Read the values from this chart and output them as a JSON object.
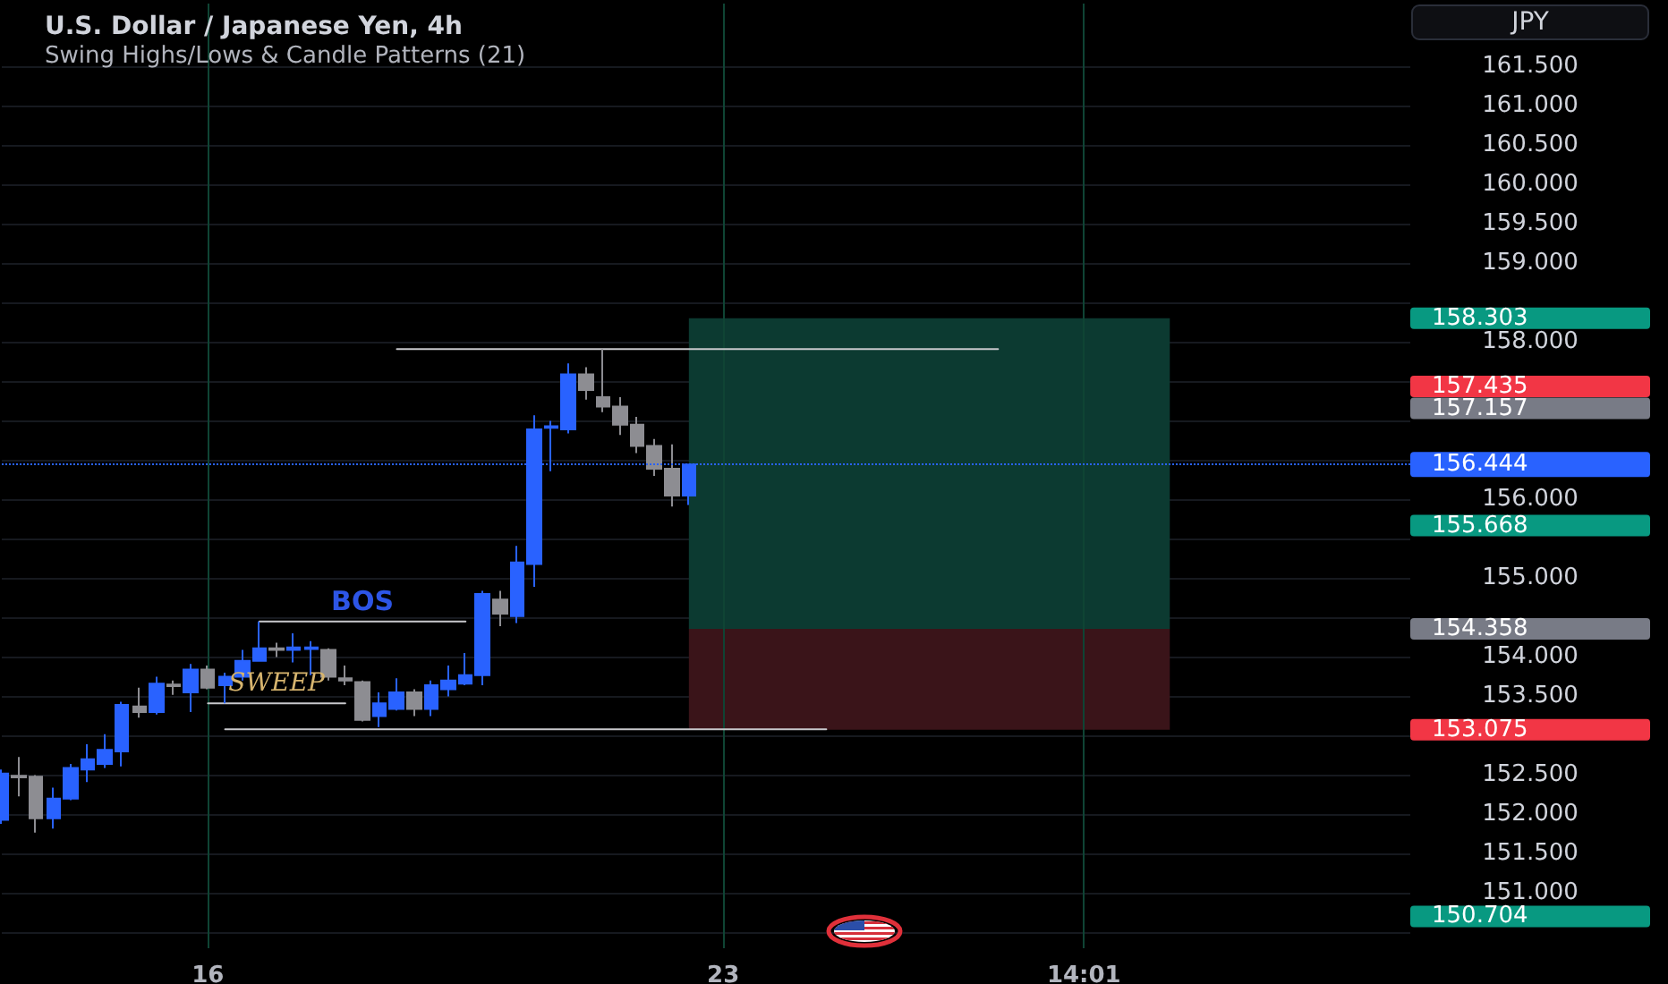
{
  "chart_data": {
    "type": "candlestick",
    "title": "U.S. Dollar / Japanese Yen, 4h",
    "subtitle": "Swing Highs/Lows & Candle Patterns (21)",
    "ylabel": "JPY",
    "categories": [
      null,
      null,
      null,
      null,
      null,
      null,
      null,
      null,
      null,
      null,
      null,
      null,
      "16",
      null,
      null,
      null,
      null,
      null,
      null,
      null,
      null,
      null,
      null,
      null,
      null,
      null,
      null,
      null,
      null,
      null,
      null,
      null,
      null,
      null,
      null,
      null,
      null,
      null,
      null,
      null,
      null,
      null,
      "23",
      null,
      null,
      null,
      null,
      null,
      null,
      null,
      null,
      null,
      null,
      null,
      null,
      null,
      null,
      null,
      null,
      null,
      null,
      null,
      null,
      "14:01",
      null,
      null,
      null,
      null,
      null,
      null,
      null,
      null,
      null,
      null,
      null,
      null,
      null,
      null,
      null,
      null,
      null,
      null,
      null
    ],
    "ohlc": [
      [
        151.93,
        152.57,
        151.88,
        152.52
      ],
      [
        152.49,
        152.73,
        152.23,
        152.47
      ],
      [
        152.48,
        152.5,
        151.77,
        151.95
      ],
      [
        151.95,
        152.34,
        151.82,
        152.2
      ],
      [
        152.2,
        152.64,
        152.18,
        152.59
      ],
      [
        152.57,
        152.89,
        152.41,
        152.7
      ],
      [
        152.64,
        153.02,
        152.59,
        152.82
      ],
      [
        152.8,
        153.43,
        152.61,
        153.39
      ],
      [
        153.37,
        153.61,
        153.23,
        153.3
      ],
      [
        153.3,
        153.75,
        153.27,
        153.66
      ],
      [
        153.65,
        153.7,
        153.52,
        153.63
      ],
      [
        153.55,
        153.91,
        153.3,
        153.84
      ],
      [
        153.84,
        153.89,
        153.59,
        153.61
      ],
      [
        153.64,
        153.8,
        153.41,
        153.75
      ],
      [
        153.75,
        154.09,
        153.7,
        153.95
      ],
      [
        153.95,
        154.45,
        153.94,
        154.11
      ],
      [
        154.11,
        154.18,
        154.0,
        154.09
      ],
      [
        154.09,
        154.3,
        153.93,
        154.12
      ],
      [
        154.1,
        154.2,
        153.77,
        154.12
      ],
      [
        154.09,
        154.11,
        153.7,
        153.75
      ],
      [
        153.73,
        153.89,
        153.64,
        153.7
      ],
      [
        153.68,
        153.7,
        153.18,
        153.2
      ],
      [
        153.25,
        153.55,
        153.11,
        153.41
      ],
      [
        153.34,
        153.73,
        153.32,
        153.55
      ],
      [
        153.55,
        153.59,
        153.25,
        153.34
      ],
      [
        153.34,
        153.7,
        153.25,
        153.64
      ],
      [
        153.59,
        153.89,
        153.5,
        153.7
      ],
      [
        153.66,
        154.05,
        153.64,
        153.77
      ],
      [
        153.77,
        154.84,
        153.64,
        154.8
      ],
      [
        154.73,
        154.84,
        154.39,
        154.55
      ],
      [
        154.52,
        155.41,
        154.43,
        155.2
      ],
      [
        155.18,
        157.07,
        154.89,
        156.89
      ],
      [
        156.91,
        157.0,
        156.36,
        156.93
      ],
      [
        156.89,
        157.73,
        156.84,
        157.59
      ],
      [
        157.59,
        157.68,
        157.27,
        157.39
      ],
      [
        157.3,
        157.91,
        157.11,
        157.18
      ],
      [
        157.18,
        157.3,
        156.82,
        156.95
      ],
      [
        156.95,
        157.05,
        156.59,
        156.68
      ],
      [
        156.68,
        156.77,
        156.3,
        156.39
      ],
      [
        156.39,
        156.7,
        155.91,
        156.05
      ],
      [
        156.05,
        156.45,
        155.93,
        156.444
      ],
      null,
      null,
      null,
      null,
      null,
      null,
      null,
      null,
      null,
      null,
      null,
      null,
      null,
      null,
      null,
      null,
      null,
      null,
      null,
      null,
      null,
      null,
      null,
      null,
      null,
      null,
      null,
      null,
      null,
      null,
      null,
      null,
      null,
      null,
      null,
      null,
      null,
      null,
      null,
      null,
      null,
      null
    ],
    "colors": [
      "#2962ff",
      "#8d8d92",
      "#8d8d92",
      "#2962ff",
      "#2962ff",
      "#2962ff",
      "#2962ff",
      "#2962ff",
      "#8d8d92",
      "#2962ff",
      "#8d8d92",
      "#2962ff",
      "#8d8d92",
      "#2962ff",
      "#2962ff",
      "#2962ff",
      "#8d8d92",
      "#2962ff",
      "#2962ff",
      "#8d8d92",
      "#8d8d92",
      "#8d8d92",
      "#2962ff",
      "#2962ff",
      "#8d8d92",
      "#2962ff",
      "#2962ff",
      "#2962ff",
      "#2962ff",
      "#8d8d92",
      "#2962ff",
      "#2962ff",
      "#2962ff",
      "#2962ff",
      "#8d8d92",
      "#8d8d92",
      "#8d8d92",
      "#8d8d92",
      "#8d8d92",
      "#8d8d92",
      "#2962ff",
      null,
      null,
      null,
      null,
      null,
      null,
      null,
      null,
      null,
      null,
      null,
      null,
      null,
      null,
      null,
      null,
      null,
      null,
      null,
      null,
      null,
      null,
      null,
      null,
      null,
      null,
      null,
      null,
      null,
      null,
      null,
      null,
      null,
      null,
      null,
      null,
      null,
      null,
      null,
      null,
      null,
      null
    ],
    "series": [
      {
        "type": "line",
        "color": "#c8c8cc",
        "values": [
          null,
          null,
          null,
          null,
          null,
          null,
          null,
          null,
          null,
          null,
          null,
          null,
          null,
          null,
          null,
          null,
          null,
          null,
          null,
          null,
          null,
          null,
          null,
          157.91,
          157.91,
          157.91,
          157.91,
          157.91,
          157.91,
          157.91,
          157.91,
          157.91,
          157.91,
          157.91,
          157.91,
          157.91,
          157.91,
          157.91,
          157.91,
          157.91,
          157.91,
          157.91,
          157.91,
          157.91,
          157.91,
          157.91,
          157.91,
          157.91,
          157.91,
          157.91,
          157.91,
          157.91,
          157.91,
          157.91,
          157.91,
          157.91,
          157.91,
          157.91,
          157.91,
          null,
          null,
          null,
          null,
          null,
          null,
          null,
          null,
          null,
          null,
          null,
          null,
          null,
          null,
          null,
          null,
          null,
          null,
          null,
          null,
          null,
          null,
          null,
          null
        ]
      },
      {
        "type": "line",
        "color": "#c8c8cc",
        "values": [
          null,
          null,
          null,
          null,
          null,
          null,
          null,
          null,
          null,
          null,
          null,
          null,
          null,
          null,
          null,
          154.45,
          154.45,
          154.45,
          154.45,
          154.45,
          154.45,
          154.45,
          154.45,
          154.45,
          154.45,
          154.45,
          154.45,
          154.45,
          null,
          null,
          null,
          null,
          null,
          null,
          null,
          null,
          null,
          null,
          null,
          null,
          null,
          null,
          null,
          null,
          null,
          null,
          null,
          null,
          null,
          null,
          null,
          null,
          null,
          null,
          null,
          null,
          null,
          null,
          null,
          null,
          null,
          null,
          null,
          null,
          null,
          null,
          null,
          null,
          null,
          null,
          null,
          null,
          null,
          null,
          null,
          null,
          null,
          null,
          null,
          null,
          null,
          null,
          null
        ]
      },
      {
        "type": "line",
        "color": "#c8c8cc",
        "values": [
          null,
          null,
          null,
          null,
          null,
          null,
          null,
          null,
          null,
          null,
          null,
          null,
          153.41,
          153.41,
          153.41,
          153.41,
          153.41,
          153.41,
          153.41,
          153.41,
          153.41,
          null,
          null,
          null,
          null,
          null,
          null,
          null,
          null,
          null,
          null,
          null,
          null,
          null,
          null,
          null,
          null,
          null,
          null,
          null,
          null,
          null,
          null,
          null,
          null,
          null,
          null,
          null,
          null,
          null,
          null,
          null,
          null,
          null,
          null,
          null,
          null,
          null,
          null,
          null,
          null,
          null,
          null,
          null,
          null,
          null,
          null,
          null,
          null,
          null,
          null,
          null,
          null,
          null,
          null,
          null,
          null,
          null,
          null,
          null,
          null,
          null,
          null
        ]
      },
      {
        "type": "line",
        "color": "#c8c8cc",
        "values": [
          null,
          null,
          null,
          null,
          null,
          null,
          null,
          null,
          null,
          null,
          null,
          null,
          null,
          153.08,
          153.08,
          153.08,
          153.08,
          153.08,
          153.08,
          153.08,
          153.08,
          153.08,
          153.08,
          153.08,
          153.08,
          153.08,
          153.08,
          153.08,
          153.08,
          153.08,
          153.08,
          153.08,
          153.08,
          153.08,
          153.08,
          153.08,
          153.08,
          153.08,
          153.08,
          153.08,
          153.08,
          153.08,
          153.08,
          153.08,
          153.08,
          153.08,
          153.08,
          153.08,
          153.08,
          null,
          null,
          null,
          null,
          null,
          null,
          null,
          null,
          null,
          null,
          null,
          null,
          null,
          null,
          null,
          null,
          null,
          null,
          null,
          null,
          null,
          null,
          null,
          null,
          null,
          null,
          null,
          null,
          null,
          null,
          null,
          null,
          null,
          null
        ]
      }
    ],
    "ylim": [
      150.3,
      162.3
    ],
    "yticks": [
      {
        "value": 150.5,
        "label": null
      },
      {
        "value": 151,
        "label": "151.000"
      },
      {
        "value": 151.5,
        "label": "151.500"
      },
      {
        "value": 152,
        "label": "152.000"
      },
      {
        "value": 152.5,
        "label": "152.500"
      },
      {
        "value": 153,
        "label": null
      },
      {
        "value": 153.5,
        "label": "153.500"
      },
      {
        "value": 154,
        "label": "154.000"
      },
      {
        "value": 154.5,
        "label": null
      },
      {
        "value": 155,
        "label": "155.000"
      },
      {
        "value": 155.5,
        "label": null
      },
      {
        "value": 156,
        "label": "156.000"
      },
      {
        "value": 156.5,
        "label": null
      },
      {
        "value": 157,
        "label": null
      },
      {
        "value": 157.5,
        "label": null
      },
      {
        "value": 158,
        "label": "158.000"
      },
      {
        "value": 158.5,
        "label": null
      },
      {
        "value": 159,
        "label": "159.000"
      },
      {
        "value": 159.5,
        "label": "159.500"
      },
      {
        "value": 160,
        "label": "160.000"
      },
      {
        "value": 160.5,
        "label": "160.500"
      },
      {
        "value": 161,
        "label": "161.000"
      },
      {
        "value": 161.5,
        "label": "161.500"
      }
    ],
    "y2lim": [
      150.3,
      162.3
    ],
    "y2ticks": [
      150.704,
      153.075,
      154.358,
      155.668,
      157.157,
      157.435,
      158.303
    ],
    "bands": [
      {
        "axis": "y",
        "from": 154.358,
        "to": 158.303,
        "color": "#0c3a31"
      },
      {
        "axis": "y",
        "from": 153.075,
        "to": 154.358,
        "color": "#3a1419"
      }
    ],
    "ref_lines": [
      {
        "axis": "y",
        "value": 156.444,
        "label": "156.444",
        "color": "#2962ff",
        "line_style": "dotted"
      }
    ],
    "annotations": [
      {
        "text": "BOS",
        "y": 154.45
      },
      {
        "text": "SWEEP",
        "y": 153.41
      }
    ],
    "grid": true
  }
}
